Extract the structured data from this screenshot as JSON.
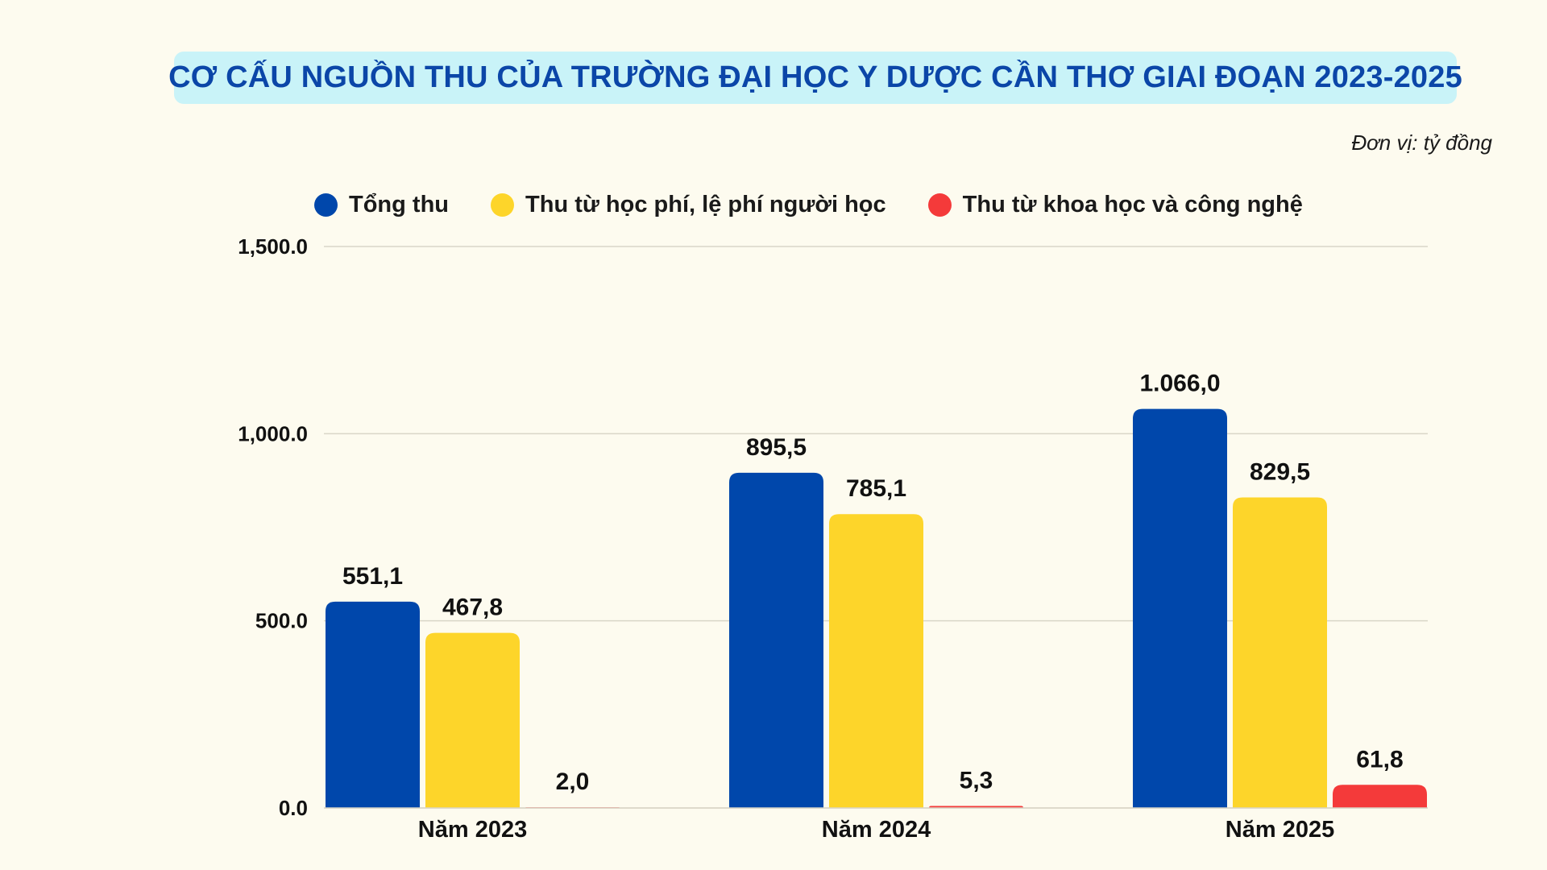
{
  "title": "CƠ CẤU NGUỒN THU CỦA TRƯỜNG ĐẠI HỌC Y DƯỢC CẦN THƠ GIAI ĐOẠN 2023-2025",
  "unit": "Đơn vị: tỷ đồng",
  "colors": {
    "background": "#fdfbef",
    "title_bg": "#c9f3f8",
    "title_text": "#0b46a8"
  },
  "chart_data": {
    "type": "bar",
    "categories": [
      "Năm 2023",
      "Năm 2024",
      "Năm 2025"
    ],
    "series": [
      {
        "name": "Tổng thu",
        "color": "#0047ab",
        "values": [
          551.1,
          895.5,
          1066.0
        ],
        "labels": [
          "551,1",
          "895,5",
          "1.066,0"
        ]
      },
      {
        "name": "Thu từ học phí, lệ phí người học",
        "color": "#fdd52a",
        "values": [
          467.8,
          785.1,
          829.5
        ],
        "labels": [
          "467,8",
          "785,1",
          "829,5"
        ]
      },
      {
        "name": "Thu từ khoa học và công nghệ",
        "color": "#f43a3a",
        "values": [
          2.0,
          5.3,
          61.8
        ],
        "labels": [
          "2,0",
          "5,3",
          "61,8"
        ]
      }
    ],
    "ylim": [
      0,
      1500
    ],
    "yticks": [
      0,
      500,
      1000,
      1500
    ],
    "ytick_labels": [
      "0.0",
      "500.0",
      "1,000.0",
      "1,500.0"
    ],
    "xlabel": "",
    "ylabel": "",
    "grid": true,
    "legend_position": "top"
  }
}
